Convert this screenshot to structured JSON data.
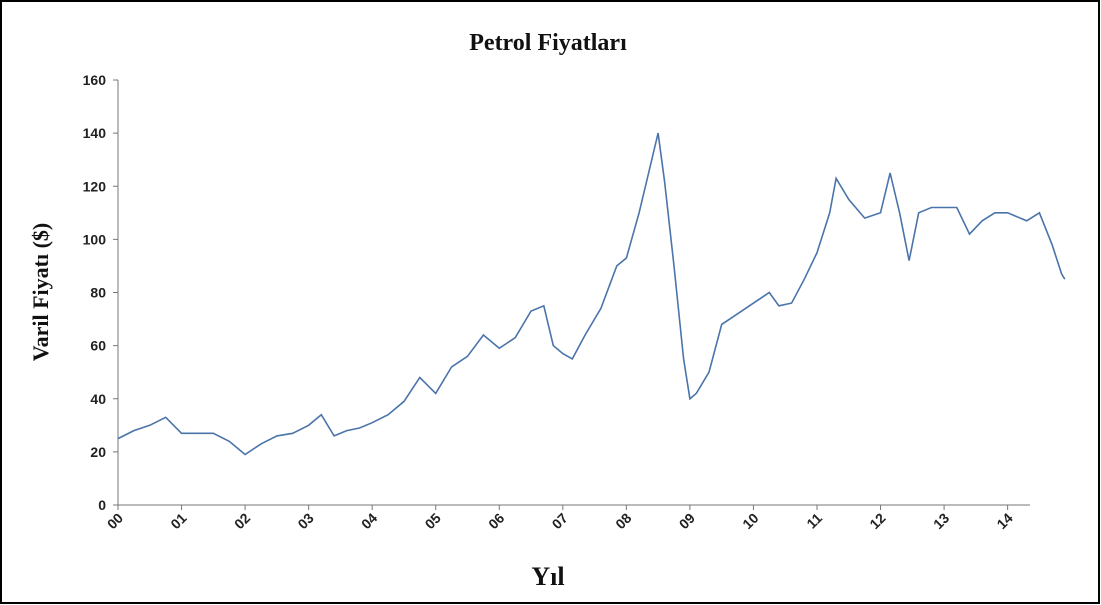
{
  "chart_data": {
    "type": "line",
    "title": "Petrol Fiyatları",
    "x_label": "Yıl",
    "y_label": "Varil Fiyatı ($)",
    "series": [
      {
        "name": "Petrol",
        "color": "#4a74aa",
        "x": [
          0,
          0.25,
          0.5,
          0.75,
          1.0,
          1.25,
          1.5,
          1.75,
          2.0,
          2.25,
          2.5,
          2.75,
          3.0,
          3.2,
          3.4,
          3.6,
          3.8,
          4.0,
          4.25,
          4.5,
          4.75,
          5.0,
          5.25,
          5.5,
          5.75,
          6.0,
          6.25,
          6.5,
          6.7,
          6.85,
          7.0,
          7.15,
          7.35,
          7.6,
          7.85,
          8.0,
          8.2,
          8.35,
          8.5,
          8.6,
          8.75,
          8.9,
          9.0,
          9.1,
          9.3,
          9.5,
          9.75,
          10.0,
          10.25,
          10.4,
          10.6,
          10.8,
          11.0,
          11.2,
          11.3,
          11.5,
          11.75,
          12.0,
          12.15,
          12.3,
          12.45,
          12.6,
          12.8,
          13.0,
          13.2,
          13.4,
          13.6,
          13.8,
          14.0,
          14.3,
          14.5,
          14.7,
          14.85,
          14.9
        ],
        "values": [
          25,
          28,
          30,
          33,
          27,
          27,
          27,
          24,
          19,
          23,
          26,
          27,
          30,
          34,
          26,
          28,
          29,
          31,
          34,
          39,
          48,
          42,
          52,
          56,
          64,
          59,
          63,
          73,
          75,
          60,
          57,
          55,
          64,
          74,
          90,
          93,
          110,
          125,
          140,
          122,
          90,
          55,
          40,
          42,
          50,
          68,
          72,
          76,
          80,
          75,
          76,
          85,
          95,
          110,
          123,
          115,
          108,
          110,
          125,
          110,
          92,
          110,
          112,
          112,
          112,
          102,
          107,
          110,
          110,
          107,
          110,
          98,
          87,
          85
        ]
      }
    ],
    "xlim": [
      0,
      14.95
    ],
    "xticks": [
      {
        "value": 0,
        "label": "00"
      },
      {
        "value": 1,
        "label": "01"
      },
      {
        "value": 2,
        "label": "02"
      },
      {
        "value": 3,
        "label": "03"
      },
      {
        "value": 4,
        "label": "04"
      },
      {
        "value": 5,
        "label": "05"
      },
      {
        "value": 6,
        "label": "06"
      },
      {
        "value": 7,
        "label": "07"
      },
      {
        "value": 8,
        "label": "08"
      },
      {
        "value": 9,
        "label": "09"
      },
      {
        "value": 10,
        "label": "10"
      },
      {
        "value": 11,
        "label": "11"
      },
      {
        "value": 12,
        "label": "12"
      },
      {
        "value": 13,
        "label": "13"
      },
      {
        "value": 14,
        "label": "14"
      }
    ],
    "ylim": [
      0,
      160
    ],
    "yticks": [
      0,
      20,
      40,
      60,
      80,
      100,
      120,
      140,
      160
    ]
  }
}
